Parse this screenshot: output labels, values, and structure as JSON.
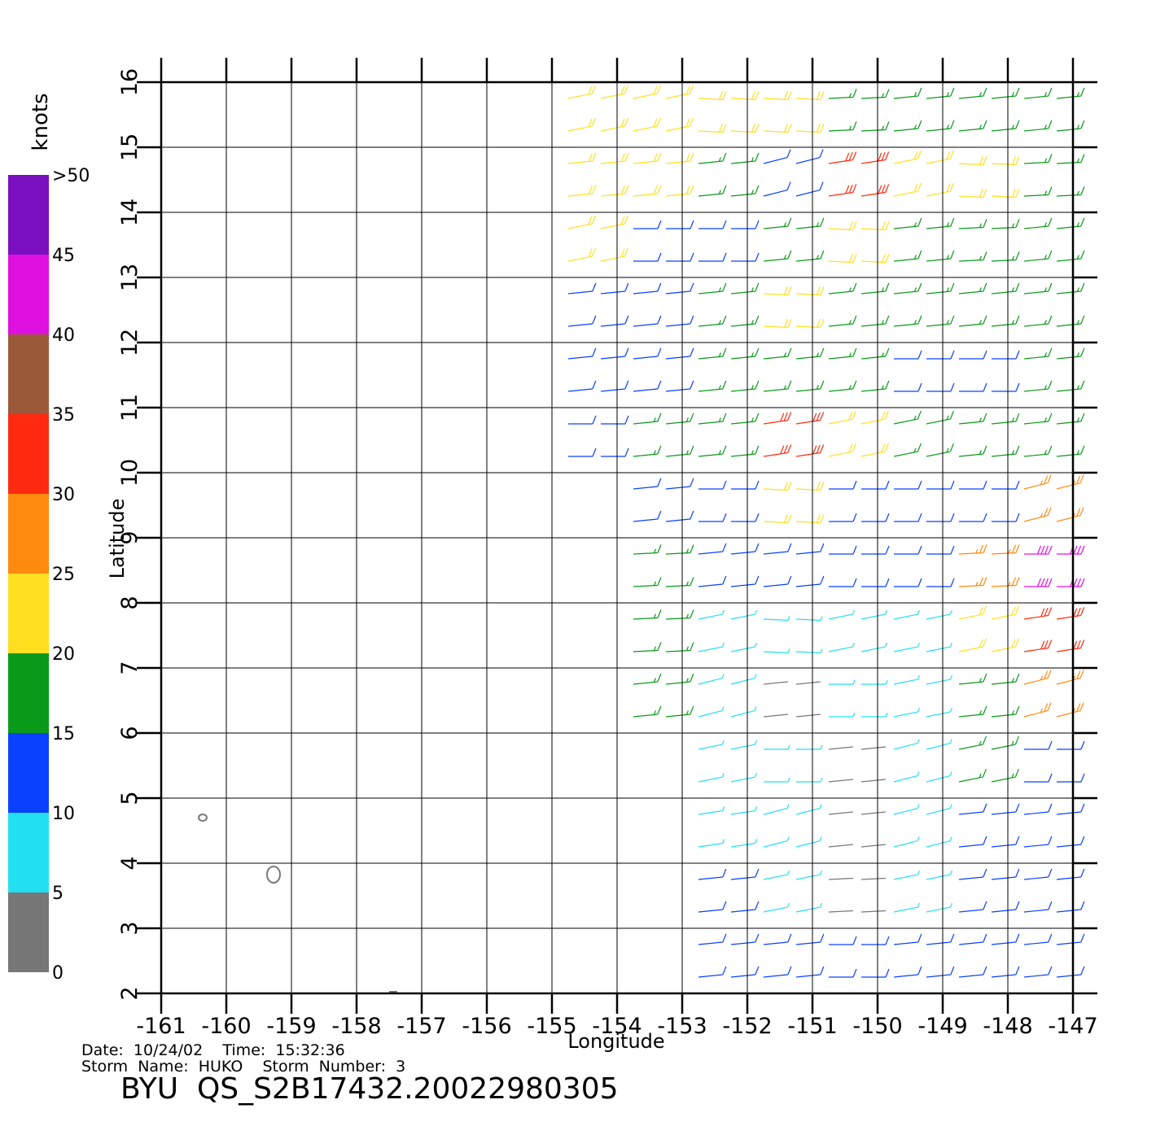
{
  "chart_data": {
    "type": "wind-barb",
    "title": "BYU  QS_S2B17432.20022980305",
    "date_line": "Date:  10/24/02    Time:  15:32:36",
    "storm_line": "Storm  Name:  HUKO    Storm  Number:  3",
    "xlabel": "Longitude",
    "ylabel": "Latitude",
    "xlim": [
      -161,
      -147
    ],
    "ylim": [
      2,
      16
    ],
    "xticks": [
      -161,
      -160,
      -159,
      -158,
      -157,
      -156,
      -155,
      -154,
      -153,
      -152,
      -151,
      -150,
      -149,
      -148,
      -147
    ],
    "yticks": [
      2,
      3,
      4,
      5,
      6,
      7,
      8,
      9,
      10,
      11,
      12,
      13,
      14,
      15,
      16
    ],
    "grid": true,
    "colorbar": {
      "label": "knots",
      "lim": [
        0,
        50
      ],
      "ticks": [
        0,
        5,
        10,
        15,
        20,
        25,
        30,
        35,
        40,
        {
          "value": 50,
          "label": ">50"
        }
      ],
      "extra_ticks": [
        45
      ],
      "colors": [
        "#777777",
        "#22e0f0",
        "#0a40ff",
        "#0a9a1a",
        "#ffe020",
        "#ff8a10",
        "#ff2a10",
        "#9a5a3a",
        "#e010e0",
        "#7a10c0"
      ]
    },
    "lon": [
      -154.5,
      -153.5,
      -152.5,
      -151.5,
      -150.5,
      -149.5,
      -148.5,
      -147.5
    ],
    "lat": [
      15.5,
      14.5,
      13.5,
      12.5,
      11.5,
      10.5,
      9.5,
      8.5,
      7.5,
      6.5,
      5.5,
      4.5,
      3.5,
      2.5
    ],
    "speed": [
      [
        22,
        22,
        20,
        20,
        18,
        17,
        17,
        17
      ],
      [
        24,
        24,
        17,
        14,
        30,
        22,
        20,
        18
      ],
      [
        22,
        12,
        12,
        17,
        20,
        17,
        18,
        17
      ],
      [
        10,
        10,
        17,
        20,
        17,
        17,
        17,
        17
      ],
      [
        10,
        10,
        17,
        17,
        17,
        12,
        12,
        17
      ],
      [
        12,
        17,
        17,
        30,
        22,
        15,
        17,
        17
      ],
      [
        null,
        10,
        12,
        20,
        12,
        12,
        12,
        28
      ],
      [
        null,
        18,
        10,
        10,
        12,
        12,
        25,
        40
      ],
      [
        null,
        18,
        8,
        6,
        8,
        8,
        22,
        30
      ],
      [
        null,
        17,
        7,
        3,
        5,
        8,
        17,
        28
      ],
      [
        null,
        null,
        8,
        5,
        3,
        7,
        15,
        12
      ],
      [
        null,
        null,
        9,
        7,
        3,
        7,
        10,
        10
      ],
      [
        null,
        null,
        10,
        8,
        4,
        8,
        10,
        10
      ],
      [
        null,
        null,
        10,
        10,
        12,
        10,
        10,
        10
      ]
    ]
  }
}
